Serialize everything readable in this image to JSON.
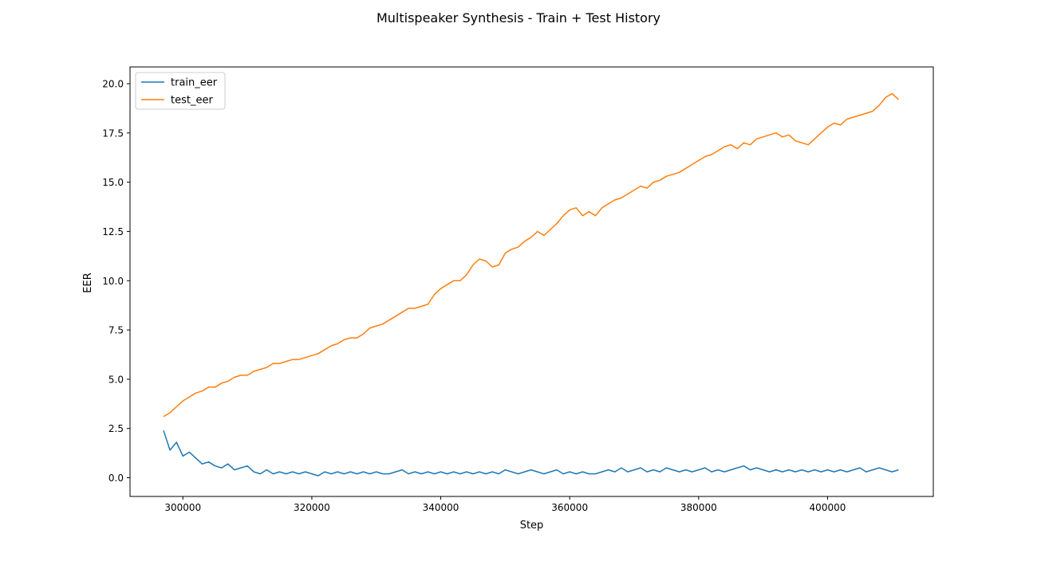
{
  "chart_data": {
    "type": "line",
    "title": "Multispeaker Synthesis - Train + Test History",
    "xlabel": "Step",
    "ylabel": "EER",
    "xlim": [
      291800,
      416400
    ],
    "ylim": [
      -0.95,
      20.85
    ],
    "x_ticks": [
      300000,
      320000,
      340000,
      360000,
      380000,
      400000
    ],
    "x_tick_labels": [
      "300000",
      "320000",
      "340000",
      "360000",
      "380000",
      "400000"
    ],
    "y_ticks": [
      0.0,
      2.5,
      5.0,
      7.5,
      10.0,
      12.5,
      15.0,
      17.5,
      20.0
    ],
    "y_tick_labels": [
      "0.0",
      "2.5",
      "5.0",
      "7.5",
      "10.0",
      "12.5",
      "15.0",
      "17.5",
      "20.0"
    ],
    "legend_position": "top-left",
    "grid": false,
    "x": [
      297000,
      298000,
      299000,
      300000,
      301000,
      302000,
      303000,
      304000,
      305000,
      306000,
      307000,
      308000,
      309000,
      310000,
      311000,
      312000,
      313000,
      314000,
      315000,
      316000,
      317000,
      318000,
      319000,
      320000,
      321000,
      322000,
      323000,
      324000,
      325000,
      326000,
      327000,
      328000,
      329000,
      330000,
      331000,
      332000,
      333000,
      334000,
      335000,
      336000,
      337000,
      338000,
      339000,
      340000,
      341000,
      342000,
      343000,
      344000,
      345000,
      346000,
      347000,
      348000,
      349000,
      350000,
      351000,
      352000,
      353000,
      354000,
      355000,
      356000,
      357000,
      358000,
      359000,
      360000,
      361000,
      362000,
      363000,
      364000,
      365000,
      366000,
      367000,
      368000,
      369000,
      370000,
      371000,
      372000,
      373000,
      374000,
      375000,
      376000,
      377000,
      378000,
      379000,
      380000,
      381000,
      382000,
      383000,
      384000,
      385000,
      386000,
      387000,
      388000,
      389000,
      390000,
      391000,
      392000,
      393000,
      394000,
      395000,
      396000,
      397000,
      398000,
      399000,
      400000,
      401000,
      402000,
      403000,
      404000,
      405000,
      406000,
      407000,
      408000,
      409000,
      410000,
      411000
    ],
    "series": [
      {
        "name": "train_eer",
        "color": "#1f77b4",
        "values": [
          2.4,
          1.4,
          1.8,
          1.1,
          1.3,
          1.0,
          0.7,
          0.8,
          0.6,
          0.5,
          0.7,
          0.4,
          0.5,
          0.6,
          0.3,
          0.2,
          0.4,
          0.2,
          0.3,
          0.2,
          0.3,
          0.2,
          0.3,
          0.2,
          0.1,
          0.3,
          0.2,
          0.3,
          0.2,
          0.3,
          0.2,
          0.3,
          0.2,
          0.3,
          0.2,
          0.2,
          0.3,
          0.4,
          0.2,
          0.3,
          0.2,
          0.3,
          0.2,
          0.3,
          0.2,
          0.3,
          0.2,
          0.3,
          0.2,
          0.3,
          0.2,
          0.3,
          0.2,
          0.4,
          0.3,
          0.2,
          0.3,
          0.4,
          0.3,
          0.2,
          0.3,
          0.4,
          0.2,
          0.3,
          0.2,
          0.3,
          0.2,
          0.2,
          0.3,
          0.4,
          0.3,
          0.5,
          0.3,
          0.4,
          0.5,
          0.3,
          0.4,
          0.3,
          0.5,
          0.4,
          0.3,
          0.4,
          0.3,
          0.4,
          0.5,
          0.3,
          0.4,
          0.3,
          0.4,
          0.5,
          0.6,
          0.4,
          0.5,
          0.4,
          0.3,
          0.4,
          0.3,
          0.4,
          0.3,
          0.4,
          0.3,
          0.4,
          0.3,
          0.4,
          0.3,
          0.4,
          0.3,
          0.4,
          0.5,
          0.3,
          0.4,
          0.5,
          0.4,
          0.3,
          0.4
        ]
      },
      {
        "name": "test_eer",
        "color": "#ff7f0e",
        "values": [
          3.1,
          3.3,
          3.6,
          3.9,
          4.1,
          4.3,
          4.4,
          4.6,
          4.6,
          4.8,
          4.9,
          5.1,
          5.2,
          5.2,
          5.4,
          5.5,
          5.6,
          5.8,
          5.8,
          5.9,
          6.0,
          6.0,
          6.1,
          6.2,
          6.3,
          6.5,
          6.7,
          6.8,
          7.0,
          7.1,
          7.1,
          7.3,
          7.6,
          7.7,
          7.8,
          8.0,
          8.2,
          8.4,
          8.6,
          8.6,
          8.7,
          8.8,
          9.3,
          9.6,
          9.8,
          10.0,
          10.0,
          10.3,
          10.8,
          11.1,
          11.0,
          10.7,
          10.8,
          11.4,
          11.6,
          11.7,
          12.0,
          12.2,
          12.5,
          12.3,
          12.6,
          12.9,
          13.3,
          13.6,
          13.7,
          13.3,
          13.5,
          13.3,
          13.7,
          13.9,
          14.1,
          14.2,
          14.4,
          14.6,
          14.8,
          14.7,
          15.0,
          15.1,
          15.3,
          15.4,
          15.5,
          15.7,
          15.9,
          16.1,
          16.3,
          16.4,
          16.6,
          16.8,
          16.9,
          16.7,
          17.0,
          16.9,
          17.2,
          17.3,
          17.4,
          17.5,
          17.3,
          17.4,
          17.1,
          17.0,
          16.9,
          17.2,
          17.5,
          17.8,
          18.0,
          17.9,
          18.2,
          18.3,
          18.4,
          18.5,
          18.6,
          18.9,
          19.3,
          19.5,
          19.2
        ]
      }
    ]
  }
}
